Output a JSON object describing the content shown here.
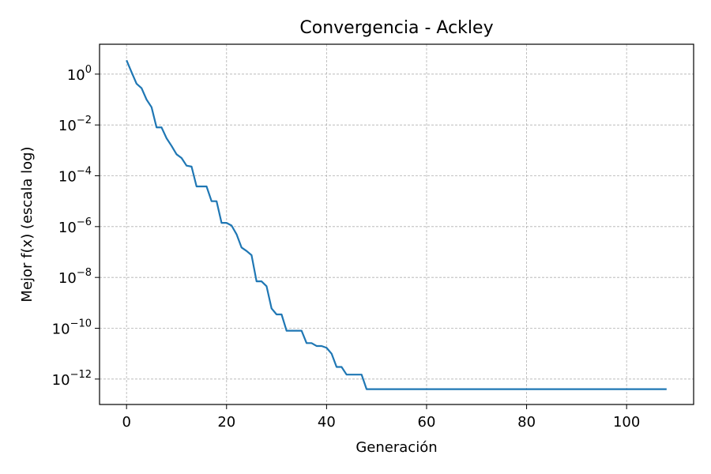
{
  "chart_data": {
    "type": "line",
    "title": "Convergencia - Ackley",
    "xlabel": "Generación",
    "ylabel": "Mejor f(x) (escala log)",
    "yscale": "log",
    "grid": true,
    "xlim": [
      -5.4,
      113.4
    ],
    "ylim": [
      1e-13,
      15
    ],
    "xticks": [
      0,
      20,
      40,
      60,
      80,
      100
    ],
    "yticks": [
      {
        "value": 1,
        "base": "10",
        "exp": "0"
      },
      {
        "value": 0.01,
        "base": "10",
        "exp": "−2"
      },
      {
        "value": 0.0001,
        "base": "10",
        "exp": "−4"
      },
      {
        "value": 1e-06,
        "base": "10",
        "exp": "−6"
      },
      {
        "value": 1e-08,
        "base": "10",
        "exp": "−8"
      },
      {
        "value": 1e-10,
        "base": "10",
        "exp": "−10"
      },
      {
        "value": 1e-12,
        "base": "10",
        "exp": "−12"
      }
    ],
    "line_color": "#1f77b4",
    "series": [
      {
        "x": [
          0,
          1,
          2,
          3,
          4,
          5,
          6,
          7,
          8,
          9,
          10,
          11,
          12,
          13,
          14,
          15,
          16,
          17,
          18,
          19,
          20,
          21,
          22,
          23,
          24,
          25,
          26,
          27,
          28,
          29,
          30,
          31,
          32,
          33,
          34,
          35,
          36,
          37,
          38,
          39,
          40,
          41,
          42,
          43,
          44,
          45,
          46,
          47,
          48,
          108
        ],
        "y": [
          3.5,
          1.2,
          0.42,
          0.28,
          0.1,
          0.05,
          0.008,
          0.008,
          0.003,
          0.0015,
          0.0007,
          0.0005,
          0.00025,
          0.00023,
          3.8e-05,
          3.8e-05,
          3.8e-05,
          1e-05,
          1e-05,
          1.4e-06,
          1.4e-06,
          1.1e-06,
          5e-07,
          1.5e-07,
          1.1e-07,
          7.5e-08,
          7e-09,
          7e-09,
          4.5e-09,
          6e-10,
          3.5e-10,
          3.5e-10,
          8e-11,
          8e-11,
          8e-11,
          8e-11,
          2.6e-11,
          2.6e-11,
          2e-11,
          2e-11,
          1.7e-11,
          1e-11,
          3e-12,
          3e-12,
          1.5e-12,
          1.5e-12,
          1.5e-12,
          1.5e-12,
          4e-13,
          4e-13
        ]
      }
    ]
  }
}
